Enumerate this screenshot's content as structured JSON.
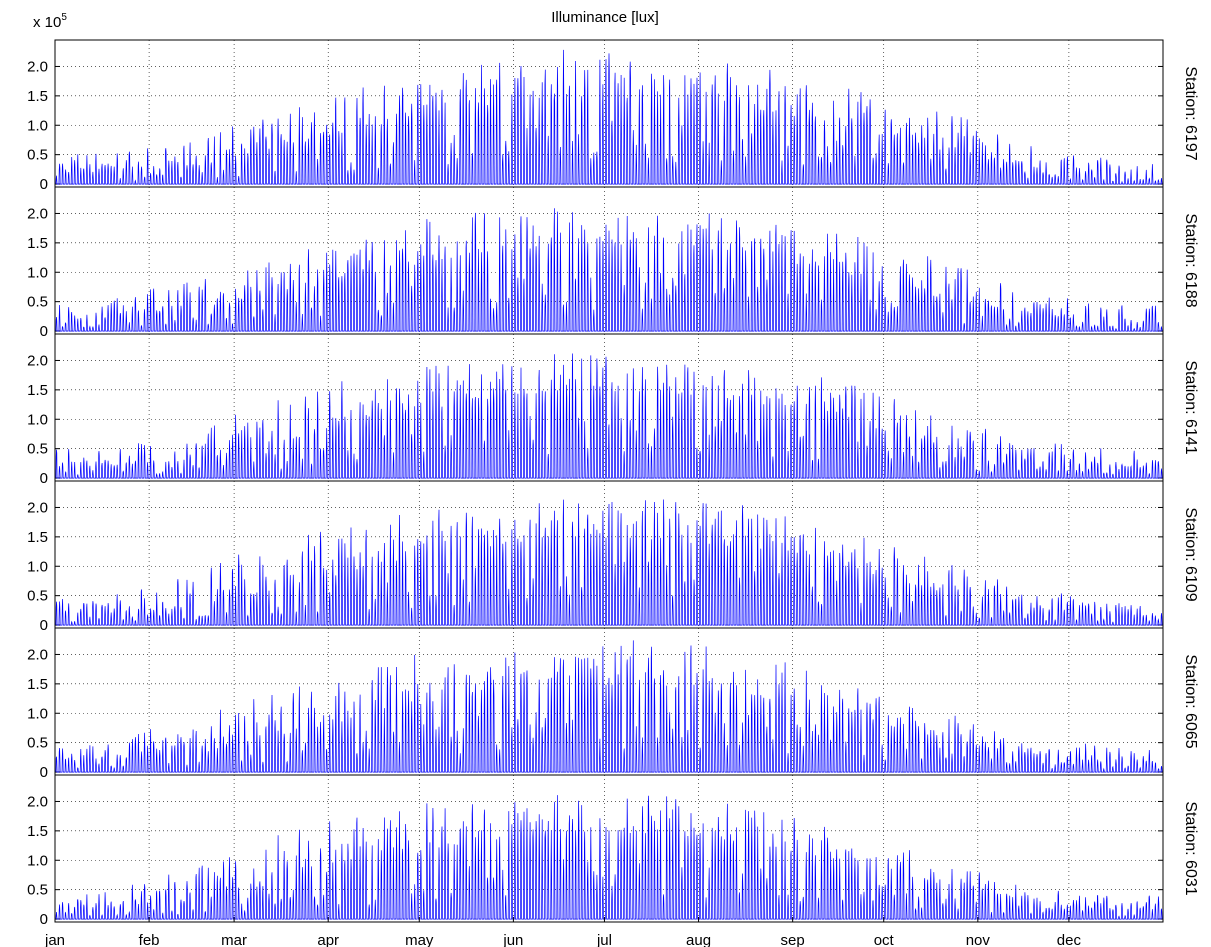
{
  "figure": {
    "title": "Illuminance [lux]",
    "scale_base": "x 10",
    "scale_exponent": "5"
  },
  "chart_data": {
    "type": "line",
    "title": "Illuminance [lux]",
    "scale_factor_label": "x 10^5",
    "y_tick_labels": [
      "0",
      "0.5",
      "1.0",
      "1.5",
      "2.0"
    ],
    "y_ticks": [
      0,
      0.5,
      1.0,
      1.5,
      2.0
    ],
    "ylim": [
      -0.05,
      2.45
    ],
    "x_tick_labels": [
      "jan",
      "feb",
      "mar",
      "apr",
      "may",
      "jun",
      "jul",
      "aug",
      "sep",
      "oct",
      "nov",
      "dec"
    ],
    "x_ticks_day_of_year": [
      1,
      32,
      60,
      91,
      121,
      152,
      182,
      213,
      244,
      274,
      305,
      335
    ],
    "xlim_day_of_year": [
      1,
      366
    ],
    "grid": true,
    "line_color": "#0000ff",
    "panel_label_position": "right, rotated",
    "panels": [
      {
        "label": "Station: 6197",
        "monthly_peak_e5": [
          0.55,
          0.75,
          1.35,
          1.75,
          2.05,
          2.3,
          2.2,
          2.05,
          1.75,
          1.35,
          0.7,
          0.45
        ],
        "monthly_typical_e5": [
          0.2,
          0.3,
          0.65,
          1.0,
          1.3,
          1.5,
          1.45,
          1.3,
          1.0,
          0.6,
          0.3,
          0.15
        ]
      },
      {
        "label": "Station: 6188",
        "monthly_peak_e5": [
          0.55,
          0.9,
          1.35,
          1.8,
          2.05,
          2.1,
          2.15,
          1.9,
          1.7,
          1.3,
          0.65,
          0.45
        ],
        "monthly_typical_e5": [
          0.2,
          0.35,
          0.65,
          1.0,
          1.3,
          1.45,
          1.45,
          1.3,
          1.0,
          0.6,
          0.3,
          0.15
        ]
      },
      {
        "label": "Station: 6141",
        "monthly_peak_e5": [
          0.5,
          0.85,
          1.45,
          1.8,
          2.0,
          2.15,
          2.1,
          1.9,
          1.7,
          1.2,
          0.65,
          0.5
        ],
        "monthly_typical_e5": [
          0.2,
          0.3,
          0.65,
          1.0,
          1.3,
          1.5,
          1.45,
          1.3,
          1.0,
          0.6,
          0.3,
          0.15
        ]
      },
      {
        "label": "Station: 6109",
        "monthly_peak_e5": [
          0.45,
          0.95,
          1.5,
          1.85,
          2.05,
          2.15,
          2.2,
          2.05,
          1.65,
          1.15,
          0.65,
          0.4
        ],
        "monthly_typical_e5": [
          0.2,
          0.3,
          0.65,
          1.0,
          1.3,
          1.5,
          1.45,
          1.3,
          1.0,
          0.6,
          0.3,
          0.15
        ]
      },
      {
        "label": "Station: 6065",
        "monthly_peak_e5": [
          0.5,
          0.95,
          1.45,
          1.95,
          2.1,
          2.15,
          2.3,
          2.05,
          1.6,
          1.1,
          0.55,
          0.45
        ],
        "monthly_typical_e5": [
          0.2,
          0.3,
          0.65,
          1.0,
          1.3,
          1.5,
          1.45,
          1.3,
          1.0,
          0.6,
          0.3,
          0.15
        ]
      },
      {
        "label": "Station: 6031",
        "monthly_peak_e5": [
          0.45,
          0.9,
          1.5,
          1.85,
          2.1,
          2.3,
          2.15,
          2.05,
          1.55,
          1.05,
          0.55,
          0.4
        ],
        "monthly_typical_e5": [
          0.2,
          0.3,
          0.65,
          1.0,
          1.3,
          1.5,
          1.45,
          1.3,
          1.0,
          0.6,
          0.3,
          0.15
        ]
      }
    ]
  }
}
